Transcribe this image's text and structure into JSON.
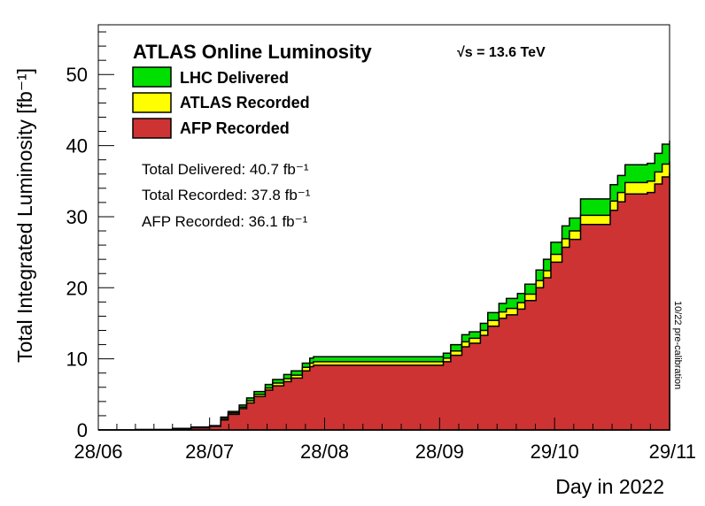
{
  "chart_data": {
    "type": "area",
    "title": "ATLAS Online Luminosity",
    "energy_label": "√s = 13.6 TeV",
    "xlabel": "Day in 2022",
    "ylabel": "Total Integrated Luminosity [fb⁻¹]",
    "side_note": "10/22 pre-calibration",
    "x_tick_labels": [
      "28/06",
      "28/07",
      "28/08",
      "28/09",
      "29/10",
      "29/11"
    ],
    "x_tick_values": [
      0,
      30,
      61,
      92,
      123,
      154
    ],
    "xlim": [
      0,
      154
    ],
    "ylim": [
      0,
      57
    ],
    "y_ticks": [
      0,
      10,
      20,
      30,
      40,
      50
    ],
    "legend_placement": "top-left",
    "grid": false,
    "stats": {
      "delivered": "Total Delivered: 40.7 fb⁻¹",
      "recorded": "Total Recorded: 37.8 fb⁻¹",
      "afp": "AFP Recorded: 36.1 fb⁻¹"
    },
    "x": [
      0,
      10,
      20,
      25,
      30,
      33,
      35,
      38,
      40,
      42,
      45,
      47,
      50,
      52,
      55,
      57,
      58,
      60,
      70,
      80,
      90,
      93,
      95,
      98,
      100,
      103,
      105,
      108,
      110,
      113,
      115,
      118,
      120,
      122,
      125,
      127,
      130,
      133,
      135,
      138,
      140,
      142,
      145,
      148,
      150,
      152,
      154
    ],
    "series": [
      {
        "name": "LHC Delivered",
        "color": "#00e000",
        "values": [
          0,
          0.05,
          0.2,
          0.4,
          0.6,
          1.8,
          2.6,
          3.5,
          4.5,
          5.4,
          6.4,
          7.1,
          7.8,
          8.3,
          9.4,
          10.1,
          10.3,
          10.3,
          10.3,
          10.3,
          10.3,
          10.8,
          12.0,
          13.4,
          13.8,
          15.0,
          16.5,
          17.8,
          18.5,
          19.2,
          20.5,
          22.5,
          24.0,
          26.4,
          28.7,
          29.8,
          32.5,
          32.5,
          32.5,
          34.5,
          35.8,
          37.3,
          37.3,
          37.5,
          38.9,
          40.2,
          40.7
        ]
      },
      {
        "name": "ATLAS Recorded",
        "color": "#ffff00",
        "values": [
          0,
          0.05,
          0.2,
          0.35,
          0.55,
          1.6,
          2.4,
          3.2,
          4.1,
          5.0,
          5.9,
          6.6,
          7.2,
          7.7,
          8.8,
          9.4,
          9.6,
          9.6,
          9.6,
          9.6,
          9.6,
          10.1,
          11.1,
          12.4,
          12.9,
          14.0,
          15.4,
          16.6,
          17.1,
          17.9,
          19.1,
          21.0,
          22.4,
          24.7,
          26.9,
          28.0,
          30.2,
          30.2,
          30.2,
          32.2,
          33.4,
          34.8,
          34.8,
          35.0,
          36.3,
          37.4,
          37.8
        ]
      },
      {
        "name": "AFP Recorded",
        "color": "#cd3333",
        "values": [
          0,
          0.05,
          0.15,
          0.3,
          0.5,
          1.4,
          2.2,
          3.0,
          3.8,
          4.7,
          5.6,
          6.2,
          6.8,
          7.3,
          8.3,
          8.9,
          9.1,
          9.1,
          9.1,
          9.1,
          9.1,
          9.6,
          10.5,
          11.7,
          12.2,
          13.3,
          14.6,
          15.7,
          16.2,
          17.0,
          18.2,
          20.0,
          21.4,
          23.6,
          25.7,
          26.8,
          28.9,
          28.9,
          28.9,
          30.9,
          32.1,
          33.2,
          33.2,
          33.4,
          34.6,
          35.6,
          36.1
        ]
      }
    ]
  }
}
